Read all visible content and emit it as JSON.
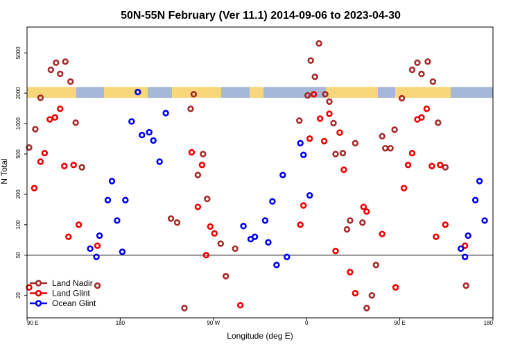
{
  "chart_data": {
    "type": "scatter",
    "title": "50N-55N February (Ver 11.1)   2014-09-06 to 2023-04-30",
    "xlabel": "Longitude (deg E)",
    "ylabel": "N Total",
    "x_ticks": [
      {
        "value": 90,
        "label": "90 E"
      },
      {
        "value": 180,
        "label": "180"
      },
      {
        "value": 270,
        "label": "90 W"
      },
      {
        "value": 360,
        "label": "0"
      },
      {
        "value": 450,
        "label": "90 E"
      },
      {
        "value": 540,
        "label": "180"
      }
    ],
    "xlim": [
      90,
      540
    ],
    "y_scale": "log",
    "ylim": [
      12,
      9000
    ],
    "y_ticks": [
      20,
      50,
      100,
      200,
      500,
      1000,
      2000,
      5000
    ],
    "reference_line": 50,
    "land_band": {
      "y_low": 1800,
      "y_high": 2300,
      "ocean_color": "#a5b8d8",
      "land_color": "#f7d77a"
    },
    "legend_position": "bottom-left",
    "series": [
      {
        "name": "Land Nadir",
        "color": "#a52a2a",
        "points": [
          [
            92,
            580
          ],
          [
            98,
            880
          ],
          [
            103,
            1800
          ],
          [
            113,
            3400
          ],
          [
            118,
            4000
          ],
          [
            122,
            3100
          ],
          [
            127,
            4100
          ],
          [
            132,
            2600
          ],
          [
            137,
            1020
          ],
          [
            143,
            370
          ],
          [
            158,
            25
          ],
          [
            229,
            115
          ],
          [
            235,
            105
          ],
          [
            242,
            15
          ],
          [
            248,
            1400
          ],
          [
            251,
            1950
          ],
          [
            255,
            310
          ],
          [
            260,
            500
          ],
          [
            264,
            180
          ],
          [
            277,
            65
          ],
          [
            282,
            31
          ],
          [
            291,
            58
          ],
          [
            353,
            1070
          ],
          [
            361,
            1900
          ],
          [
            364,
            4200
          ],
          [
            368,
            2900
          ],
          [
            372,
            6200
          ],
          [
            378,
            1950
          ],
          [
            382,
            1650
          ],
          [
            386,
            1010
          ],
          [
            388,
            500
          ],
          [
            395,
            510
          ],
          [
            399,
            90
          ],
          [
            402,
            110
          ],
          [
            407,
            640
          ],
          [
            414,
            105
          ],
          [
            418,
            15
          ],
          [
            423,
            20
          ],
          [
            427,
            40
          ],
          [
            433,
            750
          ],
          [
            436,
            570
          ],
          [
            441,
            570
          ],
          [
            445,
            870
          ],
          [
            452,
            1780
          ],
          [
            462,
            3400
          ],
          [
            467,
            4000
          ],
          [
            471,
            3100
          ],
          [
            477,
            4100
          ],
          [
            482,
            2600
          ],
          [
            487,
            1020
          ],
          [
            494,
            370
          ],
          [
            514,
            25
          ]
        ]
      },
      {
        "name": "Land Glint",
        "color": "#ee0000",
        "points": [
          [
            92,
            24
          ],
          [
            97,
            230
          ],
          [
            103,
            420
          ],
          [
            107,
            510
          ],
          [
            112,
            1100
          ],
          [
            117,
            1150
          ],
          [
            122,
            1400
          ],
          [
            126,
            380
          ],
          [
            130,
            76
          ],
          [
            135,
            390
          ],
          [
            140,
            100
          ],
          [
            158,
            62
          ],
          [
            249,
            520
          ],
          [
            255,
            150
          ],
          [
            259,
            390
          ],
          [
            263,
            50
          ],
          [
            267,
            96
          ],
          [
            271,
            82
          ],
          [
            296,
            16
          ],
          [
            354,
            100
          ],
          [
            357,
            155
          ],
          [
            363,
            710
          ],
          [
            367,
            1950
          ],
          [
            373,
            1120
          ],
          [
            377,
            670
          ],
          [
            382,
            1250
          ],
          [
            388,
            55
          ],
          [
            392,
            815
          ],
          [
            396,
            350
          ],
          [
            402,
            34
          ],
          [
            407,
            21
          ],
          [
            415,
            150
          ],
          [
            418,
            135
          ],
          [
            433,
            81
          ],
          [
            446,
            24
          ],
          [
            454,
            230
          ],
          [
            458,
            390
          ],
          [
            462,
            510
          ],
          [
            467,
            1100
          ],
          [
            471,
            1150
          ],
          [
            476,
            1400
          ],
          [
            481,
            380
          ],
          [
            485,
            76
          ],
          [
            489,
            390
          ],
          [
            494,
            100
          ],
          [
            513,
            62
          ]
        ]
      },
      {
        "name": "Ocean Glint",
        "color": "#0000ee",
        "points": [
          [
            151,
            58
          ],
          [
            157,
            48
          ],
          [
            160,
            78
          ],
          [
            168,
            175
          ],
          [
            172,
            270
          ],
          [
            177,
            110
          ],
          [
            182,
            54
          ],
          [
            185,
            175
          ],
          [
            191,
            1050
          ],
          [
            197,
            2050
          ],
          [
            201,
            770
          ],
          [
            208,
            820
          ],
          [
            212,
            680
          ],
          [
            218,
            420
          ],
          [
            224,
            1270
          ],
          [
            299,
            97
          ],
          [
            306,
            72
          ],
          [
            310,
            76
          ],
          [
            320,
            110
          ],
          [
            323,
            67
          ],
          [
            327,
            170
          ],
          [
            331,
            40
          ],
          [
            337,
            310
          ],
          [
            341,
            48
          ],
          [
            354,
            640
          ],
          [
            357,
            490
          ],
          [
            363,
            195
          ],
          [
            509,
            58
          ],
          [
            513,
            48
          ],
          [
            516,
            78
          ],
          [
            523,
            175
          ],
          [
            527,
            270
          ],
          [
            532,
            110
          ]
        ]
      }
    ]
  }
}
